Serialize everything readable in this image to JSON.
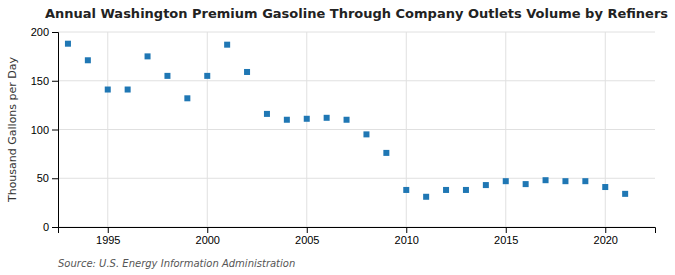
{
  "chart_data": {
    "type": "scatter",
    "title": "Annual Washington Premium Gasoline Through Company Outlets Volume by Refiners",
    "ylabel": "Thousand Gallons per Day",
    "annotations": [
      "Source: U.S. Energy Information Administration"
    ],
    "x": [
      1993,
      1994,
      1995,
      1996,
      1997,
      1998,
      1999,
      2000,
      2001,
      2002,
      2003,
      2004,
      2005,
      2006,
      2007,
      2008,
      2009,
      2010,
      2011,
      2012,
      2013,
      2014,
      2015,
      2016,
      2017,
      2018,
      2019,
      2020,
      2021
    ],
    "values": [
      188,
      171,
      141,
      141,
      175,
      155,
      132,
      155,
      187,
      159,
      116,
      110,
      111,
      112,
      110,
      95,
      76,
      38,
      31,
      38,
      38,
      43,
      47,
      44,
      48,
      47,
      47,
      41,
      34
    ],
    "xlim": [
      1992.5,
      2022.5
    ],
    "ylim": [
      0,
      200
    ],
    "xticks": [
      1995,
      2000,
      2005,
      2010,
      2015,
      2020
    ],
    "yticks": [
      0,
      50,
      100,
      150,
      200
    ],
    "grid": true
  }
}
